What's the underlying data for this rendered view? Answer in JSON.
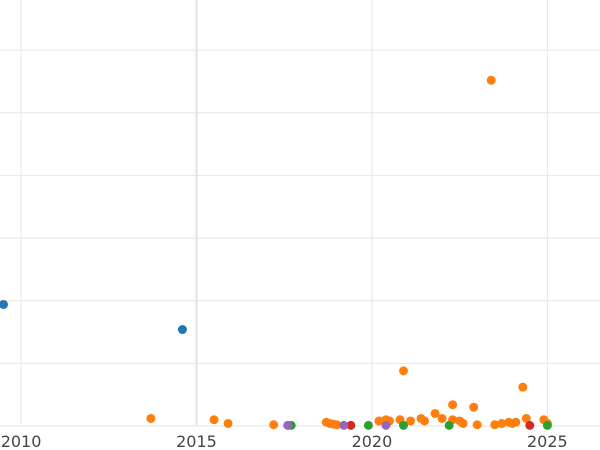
{
  "chart_data": {
    "type": "scatter",
    "title": "",
    "xlabel": "",
    "ylabel": "",
    "grid": true,
    "xlim": [
      2009.4,
      2026.5
    ],
    "ylim": [
      0,
      340
    ],
    "x_ticks": [
      2010,
      2015,
      2020,
      2025
    ],
    "x_tick_labels": [
      "2010",
      "2015",
      "2020",
      "2025"
    ],
    "y_ticks": [
      0,
      50,
      100,
      150,
      200,
      250,
      300
    ],
    "series": [
      {
        "color": "#1f77b4",
        "points": [
          [
            2009.5,
            97
          ],
          [
            2014.6,
            77
          ]
        ]
      },
      {
        "color": "#ff7f0e",
        "points": [
          [
            2013.7,
            6
          ],
          [
            2015.5,
            5
          ],
          [
            2015.9,
            2
          ],
          [
            2017.2,
            1
          ],
          [
            2018.7,
            3
          ],
          [
            2018.8,
            2
          ],
          [
            2018.9,
            1.5
          ],
          [
            2019.0,
            1
          ],
          [
            2020.2,
            4
          ],
          [
            2020.4,
            5
          ],
          [
            2020.5,
            4
          ],
          [
            2020.8,
            5
          ],
          [
            2020.9,
            44
          ],
          [
            2021.1,
            4
          ],
          [
            2021.4,
            6
          ],
          [
            2021.5,
            4
          ],
          [
            2021.8,
            10
          ],
          [
            2022.0,
            6
          ],
          [
            2022.3,
            17
          ],
          [
            2022.3,
            5
          ],
          [
            2022.5,
            4
          ],
          [
            2022.6,
            2
          ],
          [
            2022.9,
            15
          ],
          [
            2023.0,
            1
          ],
          [
            2023.4,
            276
          ],
          [
            2023.5,
            1
          ],
          [
            2023.7,
            2
          ],
          [
            2023.9,
            3
          ],
          [
            2024.0,
            2
          ],
          [
            2024.1,
            3
          ],
          [
            2024.3,
            31
          ],
          [
            2024.4,
            6
          ],
          [
            2024.9,
            5
          ],
          [
            2025.0,
            2
          ]
        ]
      },
      {
        "color": "#2ca02c",
        "points": [
          [
            2017.7,
            0.5
          ],
          [
            2019.9,
            0.5
          ],
          [
            2020.9,
            0.5
          ],
          [
            2022.2,
            0.5
          ],
          [
            2025.0,
            0.5
          ]
        ]
      },
      {
        "color": "#d62728",
        "points": [
          [
            2019.4,
            0.5
          ],
          [
            2024.5,
            0.5
          ]
        ]
      },
      {
        "color": "#9467bd",
        "points": [
          [
            2017.6,
            0.5
          ],
          [
            2019.2,
            0.5
          ],
          [
            2020.4,
            0.5
          ]
        ]
      }
    ]
  }
}
